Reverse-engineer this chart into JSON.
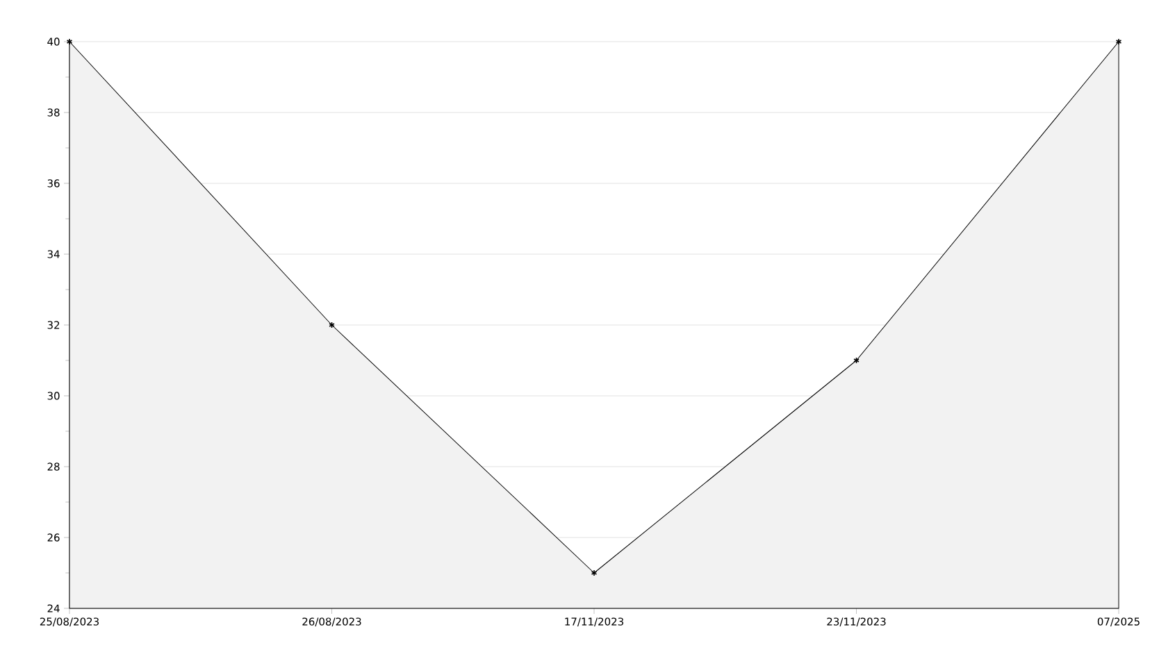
{
  "chart_data": {
    "type": "area",
    "categories": [
      "25/08/2023",
      "26/08/2023",
      "17/11/2023",
      "23/11/2023",
      "07/2025"
    ],
    "values": [
      40,
      32,
      25,
      31,
      40
    ],
    "color": "#f2f2f2",
    "ylim": [
      24,
      40
    ],
    "yticks": [
      24,
      26,
      28,
      30,
      32,
      34,
      36,
      38,
      40
    ],
    "grid": "y",
    "marker": "cross",
    "line_style": "solid"
  }
}
